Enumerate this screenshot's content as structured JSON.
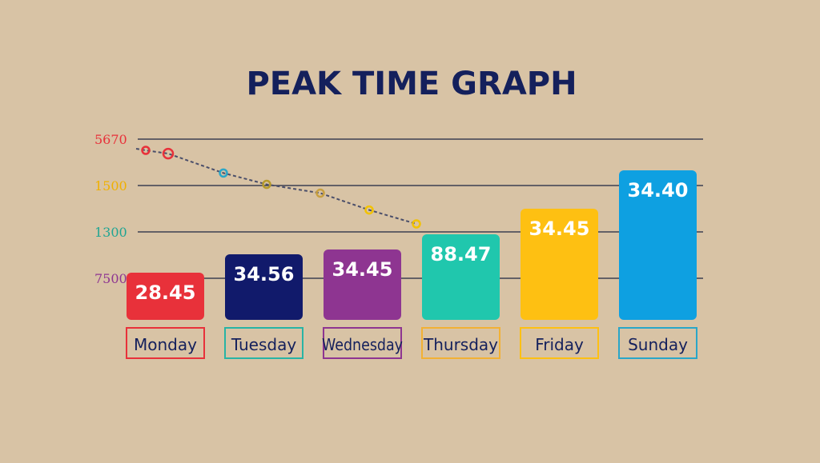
{
  "colors": {
    "background": "#d8c3a5",
    "title": "#14205c",
    "gridline": "#3c3f52",
    "trend_line": "#4a4e6a"
  },
  "chart_data": {
    "type": "bar",
    "title": "PEAK TIME GRAPH",
    "xlabel": "",
    "ylabel": "",
    "grid": true,
    "categories": [
      "Monday",
      "Tuesday",
      "Wednesday",
      "Thursday",
      "Friday",
      "Sunday"
    ],
    "values": [
      28.45,
      34.56,
      34.45,
      88.47,
      34.45,
      34.4
    ],
    "bar_labels": [
      "28.45",
      "34.56",
      "34.45",
      "88.47",
      "34.45",
      "34.40"
    ],
    "bar_colors": [
      "#e8313a",
      "#111a6b",
      "#8e3591",
      "#20c7ad",
      "#fec012",
      "#0ea0e1"
    ],
    "label_box_colors": [
      "#e8313a",
      "#28b4a5",
      "#8e3591",
      "#f2b134",
      "#fec012",
      "#2aa6c8"
    ],
    "y_ticks": [
      {
        "label": "5670",
        "color": "#e8313a"
      },
      {
        "label": "1500",
        "color": "#f0b000"
      },
      {
        "label": "1300",
        "color": "#1fa593"
      },
      {
        "label": "7500",
        "color": "#8e3591"
      }
    ],
    "trend_series": {
      "values": [
        5670,
        5480,
        4350,
        3690,
        3180,
        2200,
        1390
      ],
      "marker_colors": [
        "#e8313a",
        "#e8313a",
        "#2aa6c8",
        "#b59a2a",
        "#c8a040",
        "#f2c200",
        "#f2c200"
      ]
    }
  }
}
